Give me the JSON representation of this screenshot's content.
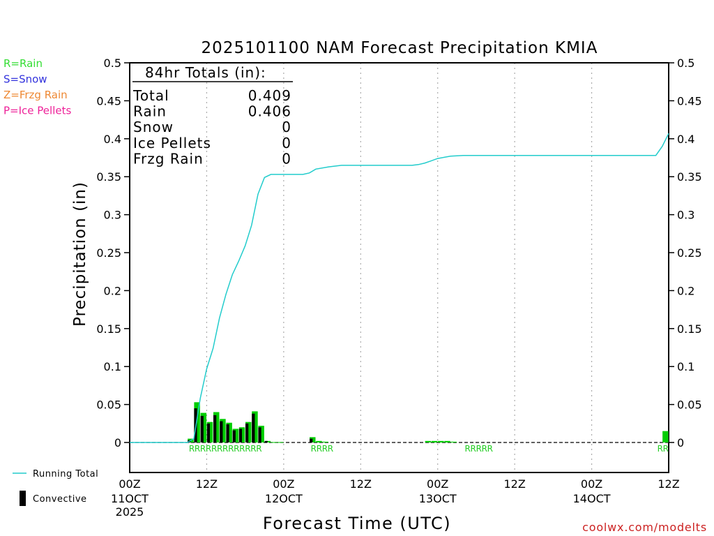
{
  "chart_data": {
    "type": "bar",
    "title": "2025101100 NAM Forecast Precipitation KMIA",
    "xlabel": "Forecast Time (UTC)",
    "ylabel": "Precipitation (in)",
    "ylim": [
      0,
      0.5
    ],
    "xlim_hours": [
      0,
      84
    ],
    "y_ticks": [
      "0.5",
      "0.45",
      "0.4",
      "0.35",
      "0.3",
      "0.25",
      "0.2",
      "0.15",
      "0.1",
      "0.05",
      "0"
    ],
    "x_ticks": [
      {
        "label": "00Z",
        "sub": "11OCT",
        "sub2": "2025"
      },
      {
        "label": "12Z",
        "sub": "",
        "sub2": ""
      },
      {
        "label": "00Z",
        "sub": "12OCT",
        "sub2": ""
      },
      {
        "label": "12Z",
        "sub": "",
        "sub2": ""
      },
      {
        "label": "00Z",
        "sub": "13OCT",
        "sub2": ""
      },
      {
        "label": "12Z",
        "sub": "",
        "sub2": ""
      },
      {
        "label": "00Z",
        "sub": "14OCT",
        "sub2": ""
      },
      {
        "label": "12Z",
        "sub": "",
        "sub2": ""
      }
    ],
    "type_legend": [
      {
        "text": "R=Rain",
        "color": "#33dd33"
      },
      {
        "text": "S=Snow",
        "color": "#3333dd"
      },
      {
        "text": "Z=Frzg Rain",
        "color": "#ee8833"
      },
      {
        "text": "P=Ice Pellets",
        "color": "#ee2299"
      }
    ],
    "totals": {
      "heading": "84hr Totals (in):",
      "rows": [
        {
          "label": "Total",
          "value": "0.409"
        },
        {
          "label": "Rain",
          "value": "0.406"
        },
        {
          "label": "Snow",
          "value": "0"
        },
        {
          "label": "Ice Pellets",
          "value": "0"
        },
        {
          "label": "Frzg Rain",
          "value": "0"
        }
      ]
    },
    "series": [
      {
        "name": "Hourly Precipitation",
        "color": "#00cc00",
        "hours": [
          10,
          11,
          12,
          13,
          14,
          15,
          16,
          17,
          18,
          19,
          20,
          21,
          22,
          23,
          24,
          29,
          30,
          31,
          47,
          48,
          49,
          50,
          51,
          84
        ],
        "values": [
          0.005,
          0.053,
          0.039,
          0.027,
          0.04,
          0.031,
          0.026,
          0.018,
          0.02,
          0.027,
          0.041,
          0.022,
          0.002,
          0.0005,
          0.0005,
          0.007,
          0.002,
          0.001,
          0.002,
          0.002,
          0.002,
          0.002,
          0.001,
          0.015
        ],
        "convective": [
          0.003,
          0.045,
          0.035,
          0.025,
          0.036,
          0.028,
          0.024,
          0.016,
          0.018,
          0.025,
          0.038,
          0.02,
          0.002,
          0,
          0,
          0.005,
          0,
          0,
          0,
          0,
          0,
          0,
          0,
          0
        ]
      },
      {
        "name": "Running Total",
        "color": "#22cccc",
        "hours": [
          0,
          9,
          10,
          11,
          12,
          13,
          14,
          15,
          16,
          17,
          18,
          19,
          20,
          21,
          22,
          24,
          27,
          28,
          29,
          31,
          33,
          36,
          44,
          45,
          46,
          47,
          48,
          50,
          52,
          60,
          70,
          80,
          82,
          83,
          84
        ],
        "values": [
          0,
          0,
          0.005,
          0.058,
          0.097,
          0.124,
          0.164,
          0.195,
          0.221,
          0.239,
          0.259,
          0.286,
          0.327,
          0.349,
          0.353,
          0.353,
          0.353,
          0.355,
          0.36,
          0.363,
          0.365,
          0.365,
          0.365,
          0.366,
          0.368,
          0.371,
          0.374,
          0.377,
          0.378,
          0.378,
          0.378,
          0.378,
          0.378,
          0.39,
          0.407
        ]
      }
    ],
    "type_markers": [
      {
        "text": "RRRRRRRRRRRRR",
        "from_hour": 10,
        "to_hour": 23
      },
      {
        "text": "RRRR",
        "from_hour": 29,
        "to_hour": 33
      },
      {
        "text": "RRRRR",
        "from_hour": 53,
        "to_hour": 58
      },
      {
        "text": "RR",
        "from_hour": 83,
        "to_hour": 85
      }
    ],
    "bottom_legend": [
      {
        "text": "Running Total",
        "kind": "line",
        "color": "#22cccc"
      },
      {
        "text": "Convective",
        "kind": "bar",
        "color": "#000000"
      }
    ],
    "watermark": "coolwx.com/modelts"
  }
}
